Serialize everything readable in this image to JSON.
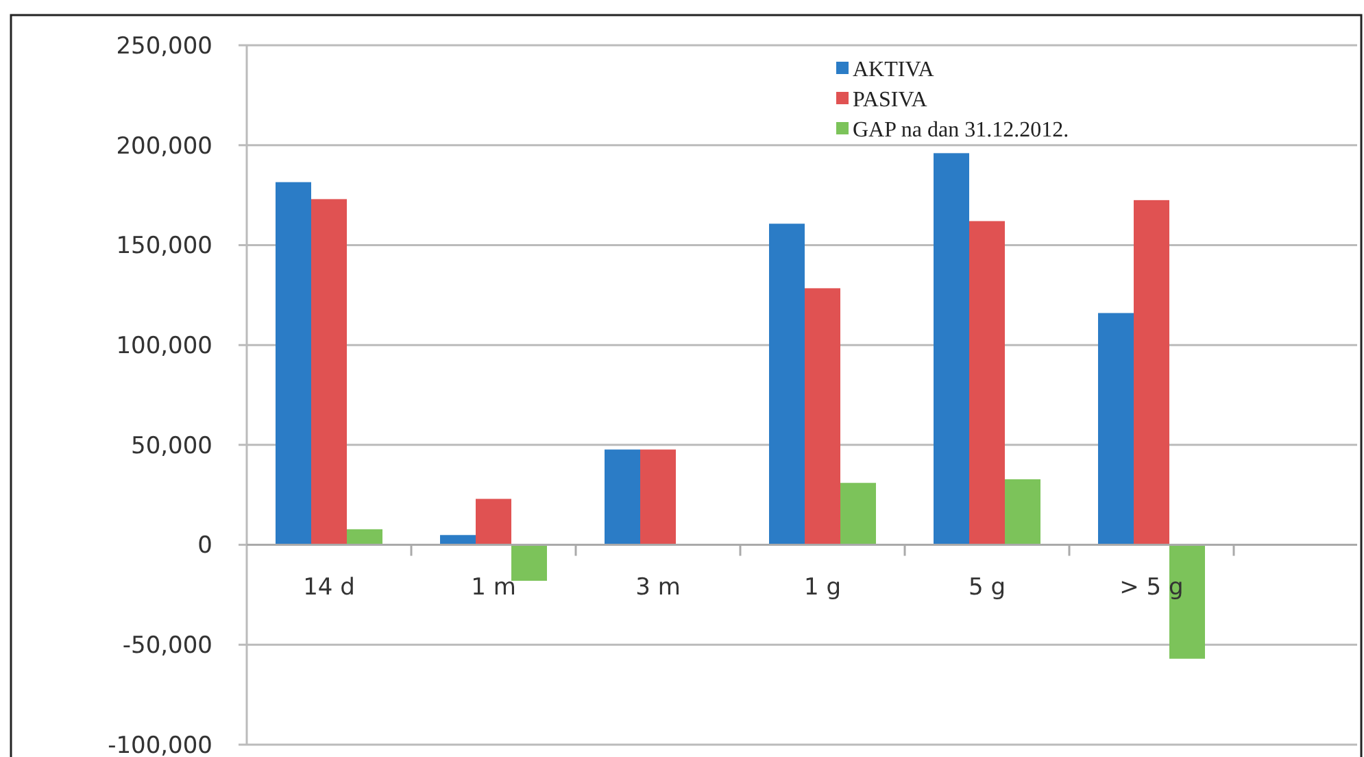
{
  "chart_data": {
    "type": "bar",
    "categories": [
      "14 d",
      "1 m",
      "3 m",
      "1 g",
      "5 g",
      "> 5 g",
      null
    ],
    "series": [
      {
        "name": "AKTIVA",
        "color": "#2b7cc6",
        "values": [
          181500,
          4900,
          47700,
          160700,
          196000,
          116000,
          null
        ]
      },
      {
        "name": "PASIVA",
        "color": "#e05252",
        "values": [
          173000,
          23000,
          47700,
          128400,
          162000,
          172500,
          null
        ]
      },
      {
        "name": "GAP na dan 31.12.2012.",
        "color": "#7cc35a",
        "values": [
          7800,
          -18000,
          0,
          31000,
          32800,
          -57000,
          null
        ]
      }
    ],
    "ylim": [
      -100000,
      250000
    ],
    "yticks": [
      {
        "value": -100000,
        "label": "-100,000"
      },
      {
        "value": -50000,
        "label": "-50,000"
      },
      {
        "value": 0,
        "label": "0"
      },
      {
        "value": 50000,
        "label": "50,000"
      },
      {
        "value": 100000,
        "label": "100,000"
      },
      {
        "value": 150000,
        "label": "150,000"
      },
      {
        "value": 200000,
        "label": "200,000"
      },
      {
        "value": 250000,
        "label": "250,000"
      }
    ],
    "grid": "y",
    "legend": "top"
  }
}
